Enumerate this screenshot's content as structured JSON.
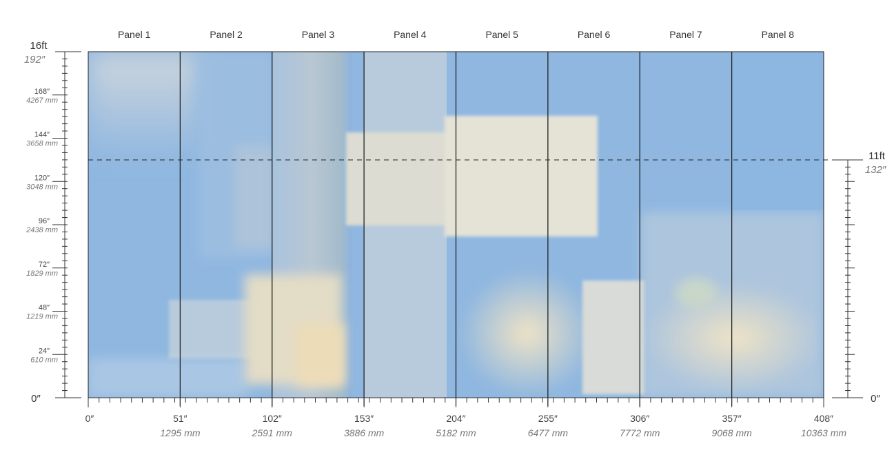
{
  "panels": [
    "Panel 1",
    "Panel 2",
    "Panel 3",
    "Panel 4",
    "Panel 5",
    "Panel 6",
    "Panel 7",
    "Panel 8"
  ],
  "left_scale": {
    "top_ft": "16ft",
    "top_in": "192″",
    "marks": [
      {
        "in": "168″",
        "mm": "4267 mm"
      },
      {
        "in": "144″",
        "mm": "3658 mm"
      },
      {
        "in": "120″",
        "mm": "3048 mm"
      },
      {
        "in": "96″",
        "mm": "2438 mm"
      },
      {
        "in": "72″",
        "mm": "1829 mm"
      },
      {
        "in": "48″",
        "mm": "1219 mm"
      },
      {
        "in": "24″",
        "mm": "610 mm"
      }
    ],
    "zero": "0″"
  },
  "right_scale": {
    "ft": "11ft",
    "in": "132″",
    "zero": "0″"
  },
  "bottom_scale": [
    {
      "in": "0″",
      "mm": ""
    },
    {
      "in": "51″",
      "mm": "1295 mm"
    },
    {
      "in": "102″",
      "mm": "2591 mm"
    },
    {
      "in": "153″",
      "mm": "3886 mm"
    },
    {
      "in": "204″",
      "mm": "5182 mm"
    },
    {
      "in": "255″",
      "mm": "6477 mm"
    },
    {
      "in": "306″",
      "mm": "7772 mm"
    },
    {
      "in": "357″",
      "mm": "9068 mm"
    },
    {
      "in": "408″",
      "mm": "10363 mm"
    }
  ],
  "colors": {
    "sky": "#8fb7e0",
    "pale": "#dfe3dd",
    "cream": "#ece2c8",
    "gray": "#b9c6d3",
    "line": "#222222"
  }
}
